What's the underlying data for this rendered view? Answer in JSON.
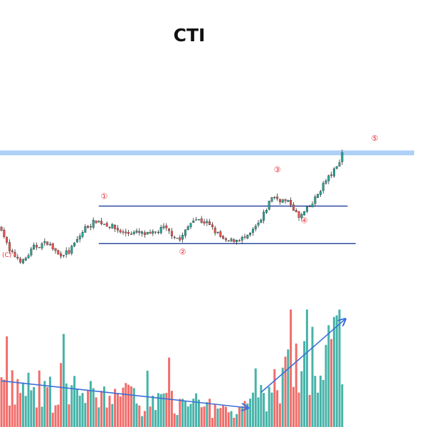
{
  "chart_data": {
    "type": "candlestick",
    "title": "CTI",
    "grid": false,
    "legend": "none",
    "colors": {
      "up": "#26a69a",
      "down": "#ef5350",
      "zone": "#aed0f7",
      "channel": "#1f3f9a",
      "arrow": "#3b6fd8",
      "label": "#e0323a"
    },
    "ylim": [
      0,
      100
    ],
    "resistance_zone": [
      77,
      79
    ],
    "channel_lines": [
      56,
      40.5
    ],
    "wave_labels": [
      {
        "text": "(C)",
        "bar": 2,
        "y": 35
      },
      {
        "text": "①",
        "bar": 38,
        "y": 59
      },
      {
        "text": "②",
        "bar": 67,
        "y": 36
      },
      {
        "text": "③",
        "bar": 102,
        "y": 70
      },
      {
        "text": "④",
        "bar": 112,
        "y": 49
      },
      {
        "text": "⑤",
        "bar": 138,
        "y": 83
      }
    ],
    "volume_arrows": [
      {
        "from": [
          0,
          12
        ],
        "to": [
          91,
          5
        ]
      },
      {
        "from": [
          96,
          9
        ],
        "to": [
          127,
          28
        ]
      }
    ]
  }
}
